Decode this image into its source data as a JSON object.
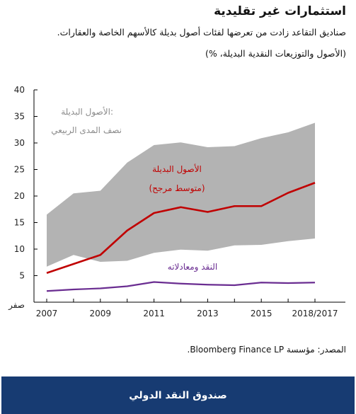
{
  "header": {
    "title": "استثمارات غير تقليدية",
    "subtitle": "صناديق التقاعد زادت من تعرضها لفئات أصول بديلة كالأسهم الخاصة والعقارات.",
    "unit": "(الأصول والتوزيعات النقدية البديلة، %)"
  },
  "chart_data": {
    "type": "line",
    "x": [
      "2007",
      "2008",
      "2009",
      "2010",
      "2011",
      "2012",
      "2013",
      "2014",
      "2015",
      "2016",
      "2018/2017"
    ],
    "xticks": [
      "2007",
      "2009",
      "2011",
      "2013",
      "2015",
      "2018/2017"
    ],
    "yticks": [
      "صفر",
      "5",
      "10",
      "15",
      "20",
      "25",
      "30",
      "35",
      "40"
    ],
    "ylim": [
      0,
      40
    ],
    "band": {
      "name": "الأصول البديلة: نصف المدى الربيعي",
      "upper": [
        16.5,
        20.5,
        21,
        26.3,
        29.6,
        30.1,
        29.2,
        29.4,
        30.9,
        32,
        33.8
      ],
      "lower": [
        6.7,
        8.9,
        7.6,
        7.8,
        9.3,
        9.9,
        9.7,
        10.7,
        10.8,
        11.5,
        12
      ],
      "color": "#b3b3b3"
    },
    "series": [
      {
        "name": "الأصول البديلة (متوسط مرجح)",
        "values": [
          5.5,
          7.2,
          8.9,
          13.5,
          16.8,
          17.9,
          17,
          18.1,
          18.1,
          20.6,
          22.5
        ],
        "color": "#c00000"
      },
      {
        "name": "النقد ومعادلاته",
        "values": [
          2.1,
          2.4,
          2.6,
          3,
          3.8,
          3.5,
          3.3,
          3.2,
          3.7,
          3.6,
          3.7
        ],
        "color": "#6a2d91"
      }
    ],
    "annotations": {
      "band_label_1": "الأصول البديلة:",
      "band_label_2": "نصف المدى الربيعي",
      "red_label_1": "الأصول البديلة",
      "red_label_2": "(متوسط مرجح)",
      "purple_label": "النقد ومعادلاته"
    },
    "grid": false
  },
  "source": "المصدر: مؤسسة Bloomberg Finance LP.",
  "footer": {
    "label": "صندوق النقد الدولي"
  }
}
